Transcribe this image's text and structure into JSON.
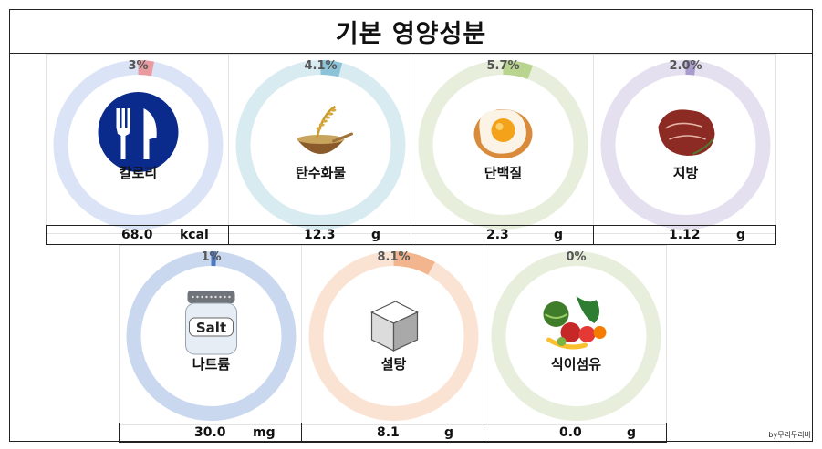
{
  "title": "기본 영양성분",
  "credit": "by무리무리바",
  "chart_data": [
    {
      "type": "donut",
      "label": "칼로리",
      "percent": 3,
      "percent_label": "3%",
      "value": "68.0",
      "unit": "kcal",
      "color": "#e89aa0",
      "ring": "#dbe4f7",
      "icon": "fork-knife-icon"
    },
    {
      "type": "donut",
      "label": "탄수화물",
      "percent": 4.1,
      "percent_label": "4.1%",
      "value": "12.3",
      "unit": "g",
      "color": "#8cc3d8",
      "ring": "#d7ebf1",
      "icon": "rice-bowl-icon"
    },
    {
      "type": "donut",
      "label": "단백질",
      "percent": 5.7,
      "percent_label": "5.7%",
      "value": "2.3",
      "unit": "g",
      "color": "#b8d48e",
      "ring": "#e7eedb",
      "icon": "fried-egg-icon"
    },
    {
      "type": "donut",
      "label": "지방",
      "percent": 2.0,
      "percent_label": "2.0%",
      "value": "1.12",
      "unit": "g",
      "color": "#a99ccc",
      "ring": "#e5e0ef",
      "icon": "steak-icon"
    },
    {
      "type": "donut",
      "label": "나트륨",
      "percent": 1,
      "percent_label": "1%",
      "value": "30.0",
      "unit": "mg",
      "color": "#4a78c2",
      "ring": "#c9d8ef",
      "icon": "salt-shaker-icon"
    },
    {
      "type": "donut",
      "label": "설탕",
      "percent": 8.1,
      "percent_label": "8.1%",
      "value": "8.1",
      "unit": "g",
      "color": "#f3b58d",
      "ring": "#fbe3d4",
      "icon": "sugar-cube-icon"
    },
    {
      "type": "donut",
      "label": "식이섬유",
      "percent": 0,
      "percent_label": "0%",
      "value": "0.0",
      "unit": "g",
      "color": "#9fbf7e",
      "ring": "#e7eedb",
      "icon": "vegetables-icon"
    }
  ]
}
